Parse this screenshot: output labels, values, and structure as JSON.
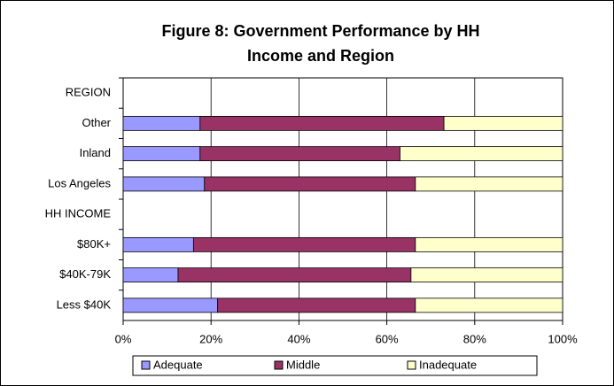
{
  "chart_data": {
    "type": "stacked_bar_horizontal",
    "title": [
      "Figure 8: Government Performance by HH",
      "Income and Region"
    ],
    "categories": [
      "REGION",
      "Other",
      "Inland",
      "Los Angeles",
      "HH INCOME",
      "$80K+",
      "$40K-79K",
      "Less $40K"
    ],
    "series": [
      {
        "name": "Adequate",
        "color": "#9999ff",
        "values": [
          null,
          17.5,
          17.5,
          18.5,
          null,
          16,
          12.5,
          21.5
        ]
      },
      {
        "name": "Middle",
        "color": "#993366",
        "values": [
          null,
          55.5,
          45.5,
          48,
          null,
          50.5,
          53,
          45
        ]
      },
      {
        "name": "Inadequate",
        "color": "#ffffcc",
        "values": [
          null,
          27,
          37,
          33.5,
          null,
          33.5,
          34.5,
          33.5
        ]
      }
    ],
    "xlim": [
      0,
      100
    ],
    "xticks": [
      {
        "value": 0,
        "label": "0%"
      },
      {
        "value": 20,
        "label": "20%"
      },
      {
        "value": 40,
        "label": "40%"
      },
      {
        "value": 60,
        "label": "60%"
      },
      {
        "value": 80,
        "label": "80%"
      },
      {
        "value": 100,
        "label": "100%"
      }
    ],
    "grid": true,
    "legend": "bottom"
  }
}
